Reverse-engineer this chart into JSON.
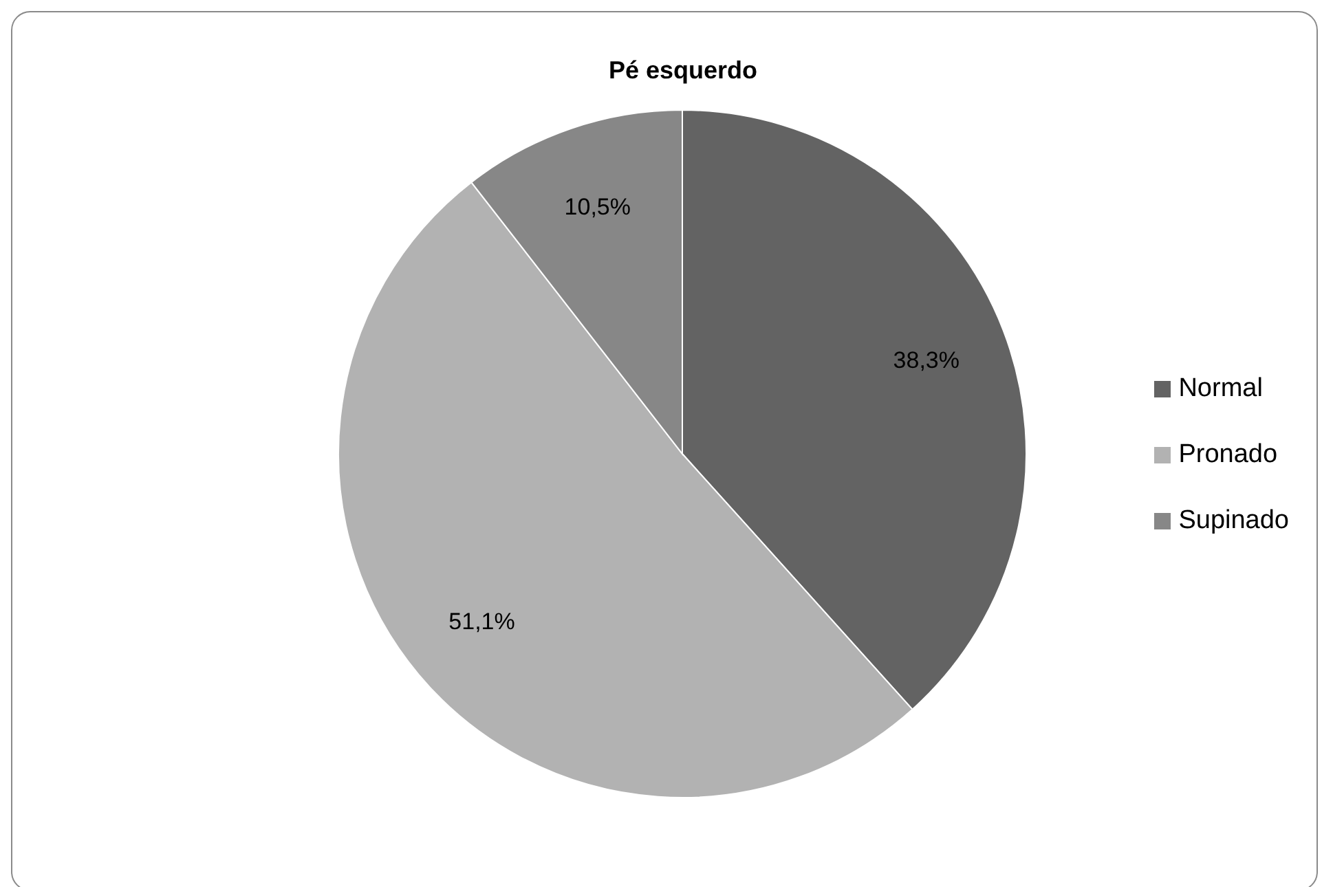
{
  "chart_data": {
    "type": "pie",
    "title": "Pé esquerdo",
    "categories": [
      "Normal",
      "Pronado",
      "Supinado"
    ],
    "values": [
      38.3,
      51.1,
      10.5
    ],
    "colors": [
      "#636363",
      "#b2b2b2",
      "#878787"
    ],
    "value_labels": [
      "38,3%",
      "51,1%",
      "10,5%"
    ],
    "legend": "right"
  }
}
